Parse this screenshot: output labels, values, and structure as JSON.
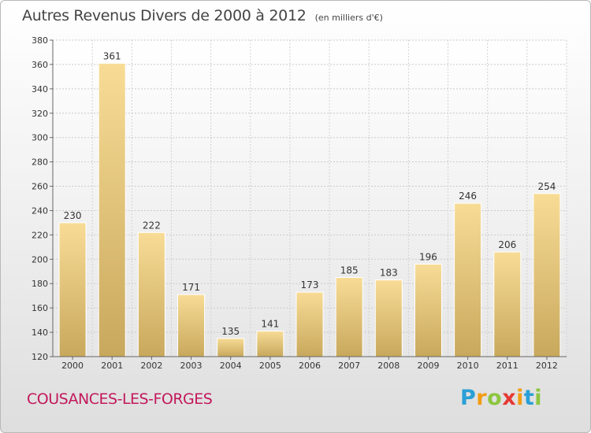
{
  "header": {
    "title": "Autres Revenus Divers de 2000 à 2012",
    "subtitle": "(en milliers d'€)"
  },
  "footer": {
    "city": "COUSANCES-LES-FORGES",
    "brand": "Proxiti",
    "brand_letters": [
      {
        "char": "P",
        "color": "#2a9fd6"
      },
      {
        "char": "r",
        "color": "#f39c12"
      },
      {
        "char": "o",
        "color": "#8cc63f"
      },
      {
        "char": "x",
        "color": "#e53935"
      },
      {
        "char": "i",
        "color": "#f39c12"
      },
      {
        "char": "t",
        "color": "#2a9fd6"
      },
      {
        "char": "i",
        "color": "#8cc63f"
      }
    ]
  },
  "chart_data": {
    "type": "bar",
    "title": "Autres Revenus Divers de 2000 à 2012",
    "subtitle": "(en milliers d'€)",
    "categories": [
      "2000",
      "2001",
      "2002",
      "2003",
      "2004",
      "2005",
      "2006",
      "2007",
      "2008",
      "2009",
      "2010",
      "2011",
      "2012"
    ],
    "values": [
      230,
      361,
      222,
      171,
      135,
      141,
      173,
      185,
      183,
      196,
      246,
      206,
      254
    ],
    "ylim": [
      120,
      380
    ],
    "yticks": [
      120,
      140,
      160,
      180,
      200,
      220,
      240,
      260,
      280,
      300,
      320,
      340,
      360,
      380
    ],
    "xlabel": "",
    "ylabel": "",
    "grid": true,
    "legend": "none",
    "bar_color": "#e8c77a",
    "data_labels": true
  }
}
